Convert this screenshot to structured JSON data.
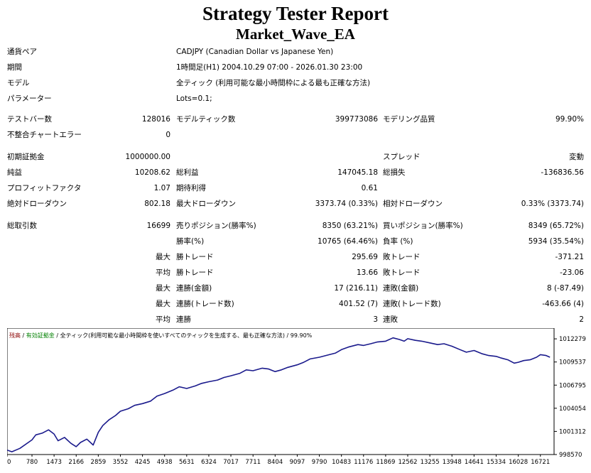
{
  "report": {
    "title": "Strategy Tester Report",
    "subtitle": "Market_Wave_EA"
  },
  "info": {
    "pair_label": "通貨ペア",
    "pair_value": "CADJPY (Canadian Dollar vs Japanese Yen)",
    "period_label": "期間",
    "period_value": "1時間足(H1) 2004.10.29 07:00 - 2026.01.30 23:00",
    "model_label": "モデル",
    "model_value": "全ティック (利用可能な最小時間枠による最も正確な方法)",
    "params_label": "パラメーター",
    "params_value": "Lots=0.1;"
  },
  "stats": {
    "bars_label": "テストバー数",
    "bars_value": "128016",
    "ticks_label": "モデルティック数",
    "ticks_value": "399773086",
    "quality_label": "モデリング品質",
    "quality_value": "99.90%",
    "mismatch_label": "不整合チャートエラー",
    "mismatch_value": "0",
    "deposit_label": "初期証拠金",
    "deposit_value": "1000000.00",
    "spread_label": "スプレッド",
    "spread_value": "変動",
    "net_label": "純益",
    "net_value": "10208.62",
    "gross_profit_label": "総利益",
    "gross_profit_value": "147045.18",
    "gross_loss_label": "総損失",
    "gross_loss_value": "-136836.56",
    "pf_label": "プロフィットファクタ",
    "pf_value": "1.07",
    "expected_label": "期待利得",
    "expected_value": "0.61",
    "abs_dd_label": "絶対ドローダウン",
    "abs_dd_value": "802.18",
    "max_dd_label": "最大ドローダウン",
    "max_dd_value": "3373.74 (0.33%)",
    "rel_dd_label": "相対ドローダウン",
    "rel_dd_value": "0.33% (3373.74)",
    "total_trades_label": "総取引数",
    "total_trades_value": "16699",
    "short_label": "売りポジション(勝率%)",
    "short_value": "8350 (63.21%)",
    "long_label": "買いポジション(勝率%)",
    "long_value": "8349 (65.72%)",
    "win_rate_label": "勝率(%)",
    "win_rate_value": "10765 (64.46%)",
    "loss_rate_label": "負率 (%)",
    "loss_rate_value": "5934 (35.54%)",
    "max1_label": "最大",
    "largest_win_label": "勝トレード",
    "largest_win_value": "295.69",
    "largest_loss_label": "敗トレード",
    "largest_loss_value": "-371.21",
    "avg1_label": "平均",
    "avg_win_label": "勝トレード",
    "avg_win_value": "13.66",
    "avg_loss_label": "敗トレード",
    "avg_loss_value": "-23.06",
    "max2_label": "最大",
    "cons_wins_label": "連勝(金額)",
    "cons_wins_value": "17 (216.11)",
    "cons_losses_label": "連敗(金額)",
    "cons_losses_value": "8 (-87.49)",
    "max3_label": "最大",
    "cons_profit_label": "連勝(トレード数)",
    "cons_profit_value": "401.52 (7)",
    "cons_loss_label": "連敗(トレード数)",
    "cons_loss_value": "-463.66 (4)",
    "avg2_label": "平均",
    "avg_cons_wins_label": "連勝",
    "avg_cons_wins_value": "3",
    "avg_cons_losses_label": "連敗",
    "avg_cons_losses_value": "2"
  },
  "chart_data": {
    "type": "line",
    "legend": {
      "balance": "残高",
      "sep1": " / ",
      "margin": "有効証拠金",
      "sep2": " / ",
      "model": "全ティック(利用可能な最小時間枠を使いすべてのティックを生成する、最も正確な方法)",
      "sep3": " / ",
      "quality": "99.90%"
    },
    "colors": {
      "line": "#1a1a8c",
      "legend_balance": "#8b0000",
      "legend_margin": "#008000"
    },
    "x_ticks": [
      0,
      780,
      1473,
      2166,
      2859,
      3552,
      4245,
      4938,
      5631,
      6324,
      7017,
      7711,
      8404,
      9097,
      9790,
      10483,
      11176,
      11869,
      12562,
      13255,
      13948,
      14641,
      15334,
      16028,
      16721
    ],
    "xlim": [
      0,
      17150
    ],
    "y_ticks": [
      998570,
      1001312,
      1004054,
      1006795,
      1009537,
      1012279
    ],
    "ylim": [
      998570,
      1013550
    ],
    "series": [
      {
        "x": [
          0,
          150,
          400,
          780,
          900,
          1100,
          1300,
          1473,
          1600,
          1800,
          2000,
          2166,
          2300,
          2500,
          2700,
          2859,
          3000,
          3200,
          3400,
          3552,
          3800,
          4000,
          4245,
          4500,
          4700,
          4938,
          5200,
          5400,
          5631,
          5900,
          6100,
          6324,
          6600,
          6800,
          7017,
          7300,
          7500,
          7711,
          8000,
          8200,
          8404,
          8600,
          8800,
          9097,
          9300,
          9500,
          9790,
          10100,
          10300,
          10483,
          10700,
          11000,
          11176,
          11400,
          11600,
          11869,
          12100,
          12300,
          12450,
          12562,
          12800,
          13000,
          13255,
          13500,
          13700,
          13948,
          14200,
          14400,
          14641,
          14900,
          15100,
          15334,
          15500,
          15700,
          15900,
          16028,
          16200,
          16400,
          16600,
          16721,
          16900,
          17020
        ],
        "y": [
          999100,
          998900,
          999300,
          1000300,
          1000900,
          1001100,
          1001500,
          1001000,
          1000200,
          1000600,
          999900,
          999500,
          1000000,
          1000400,
          999700,
          1001200,
          1002000,
          1002700,
          1003200,
          1003700,
          1004000,
          1004400,
          1004600,
          1004900,
          1005500,
          1005800,
          1006200,
          1006600,
          1006400,
          1006700,
          1007000,
          1007200,
          1007400,
          1007700,
          1007900,
          1008200,
          1008600,
          1008500,
          1008800,
          1008700,
          1008400,
          1008600,
          1008900,
          1009200,
          1009500,
          1009900,
          1010100,
          1010400,
          1010600,
          1011000,
          1011300,
          1011600,
          1011500,
          1011700,
          1011900,
          1012000,
          1012400,
          1012200,
          1012000,
          1012300,
          1012100,
          1012000,
          1011800,
          1011600,
          1011700,
          1011400,
          1011000,
          1010700,
          1010900,
          1010500,
          1010300,
          1010200,
          1010000,
          1009800,
          1009400,
          1009500,
          1009700,
          1009800,
          1010100,
          1010400,
          1010300,
          1010100
        ]
      }
    ]
  }
}
